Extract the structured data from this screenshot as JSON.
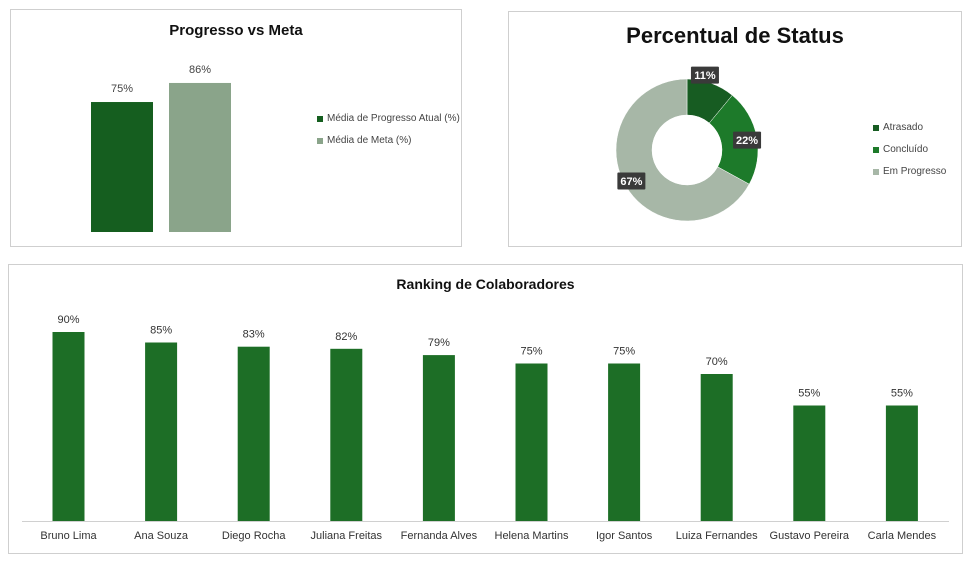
{
  "progress_chart": {
    "title": "Progresso vs Meta",
    "legend": [
      {
        "label": "Média de Progresso Atual (%)",
        "color": "#155e1f"
      },
      {
        "label": "Média de Meta (%)",
        "color": "#8aa48a"
      }
    ]
  },
  "status_chart": {
    "title": "Percentual de Status",
    "legend": [
      {
        "label": "Atrasado",
        "color": "#175c22"
      },
      {
        "label": "Concluído",
        "color": "#1d7a2a"
      },
      {
        "label": "Em Progresso",
        "color": "#a7b7a7"
      }
    ]
  },
  "ranking_chart": {
    "title": "Ranking de Colaboradores"
  },
  "chart_data": [
    {
      "type": "bar",
      "title": "Progresso vs Meta",
      "categories": [
        "Média de Progresso Atual (%)",
        "Média de Meta (%)"
      ],
      "values": [
        75,
        86
      ],
      "value_labels": [
        "75%",
        "86%"
      ],
      "colors": [
        "#155e1f",
        "#8aa48a"
      ],
      "legend_position": "right",
      "grid": false
    },
    {
      "type": "pie",
      "style": "donut",
      "title": "Percentual de Status",
      "categories": [
        "Atrasado",
        "Concluído",
        "Em Progresso"
      ],
      "values": [
        11,
        22,
        67
      ],
      "value_labels": [
        "11%",
        "22%",
        "67%"
      ],
      "colors": [
        "#175c22",
        "#1d7a2a",
        "#a7b7a7"
      ],
      "legend_position": "right"
    },
    {
      "type": "bar",
      "title": "Ranking de Colaboradores",
      "categories": [
        "Bruno Lima",
        "Ana Souza",
        "Diego Rocha",
        "Juliana Freitas",
        "Fernanda Alves",
        "Helena Martins",
        "Igor Santos",
        "Luiza Fernandes",
        "Gustavo Pereira",
        "Carla Mendes"
      ],
      "values": [
        90,
        85,
        83,
        82,
        79,
        75,
        75,
        70,
        55,
        55
      ],
      "value_labels": [
        "90%",
        "85%",
        "83%",
        "82%",
        "79%",
        "75%",
        "75%",
        "70%",
        "55%",
        "55%"
      ],
      "color": "#1d6e26",
      "ylim": [
        0,
        100
      ],
      "grid": false
    }
  ]
}
